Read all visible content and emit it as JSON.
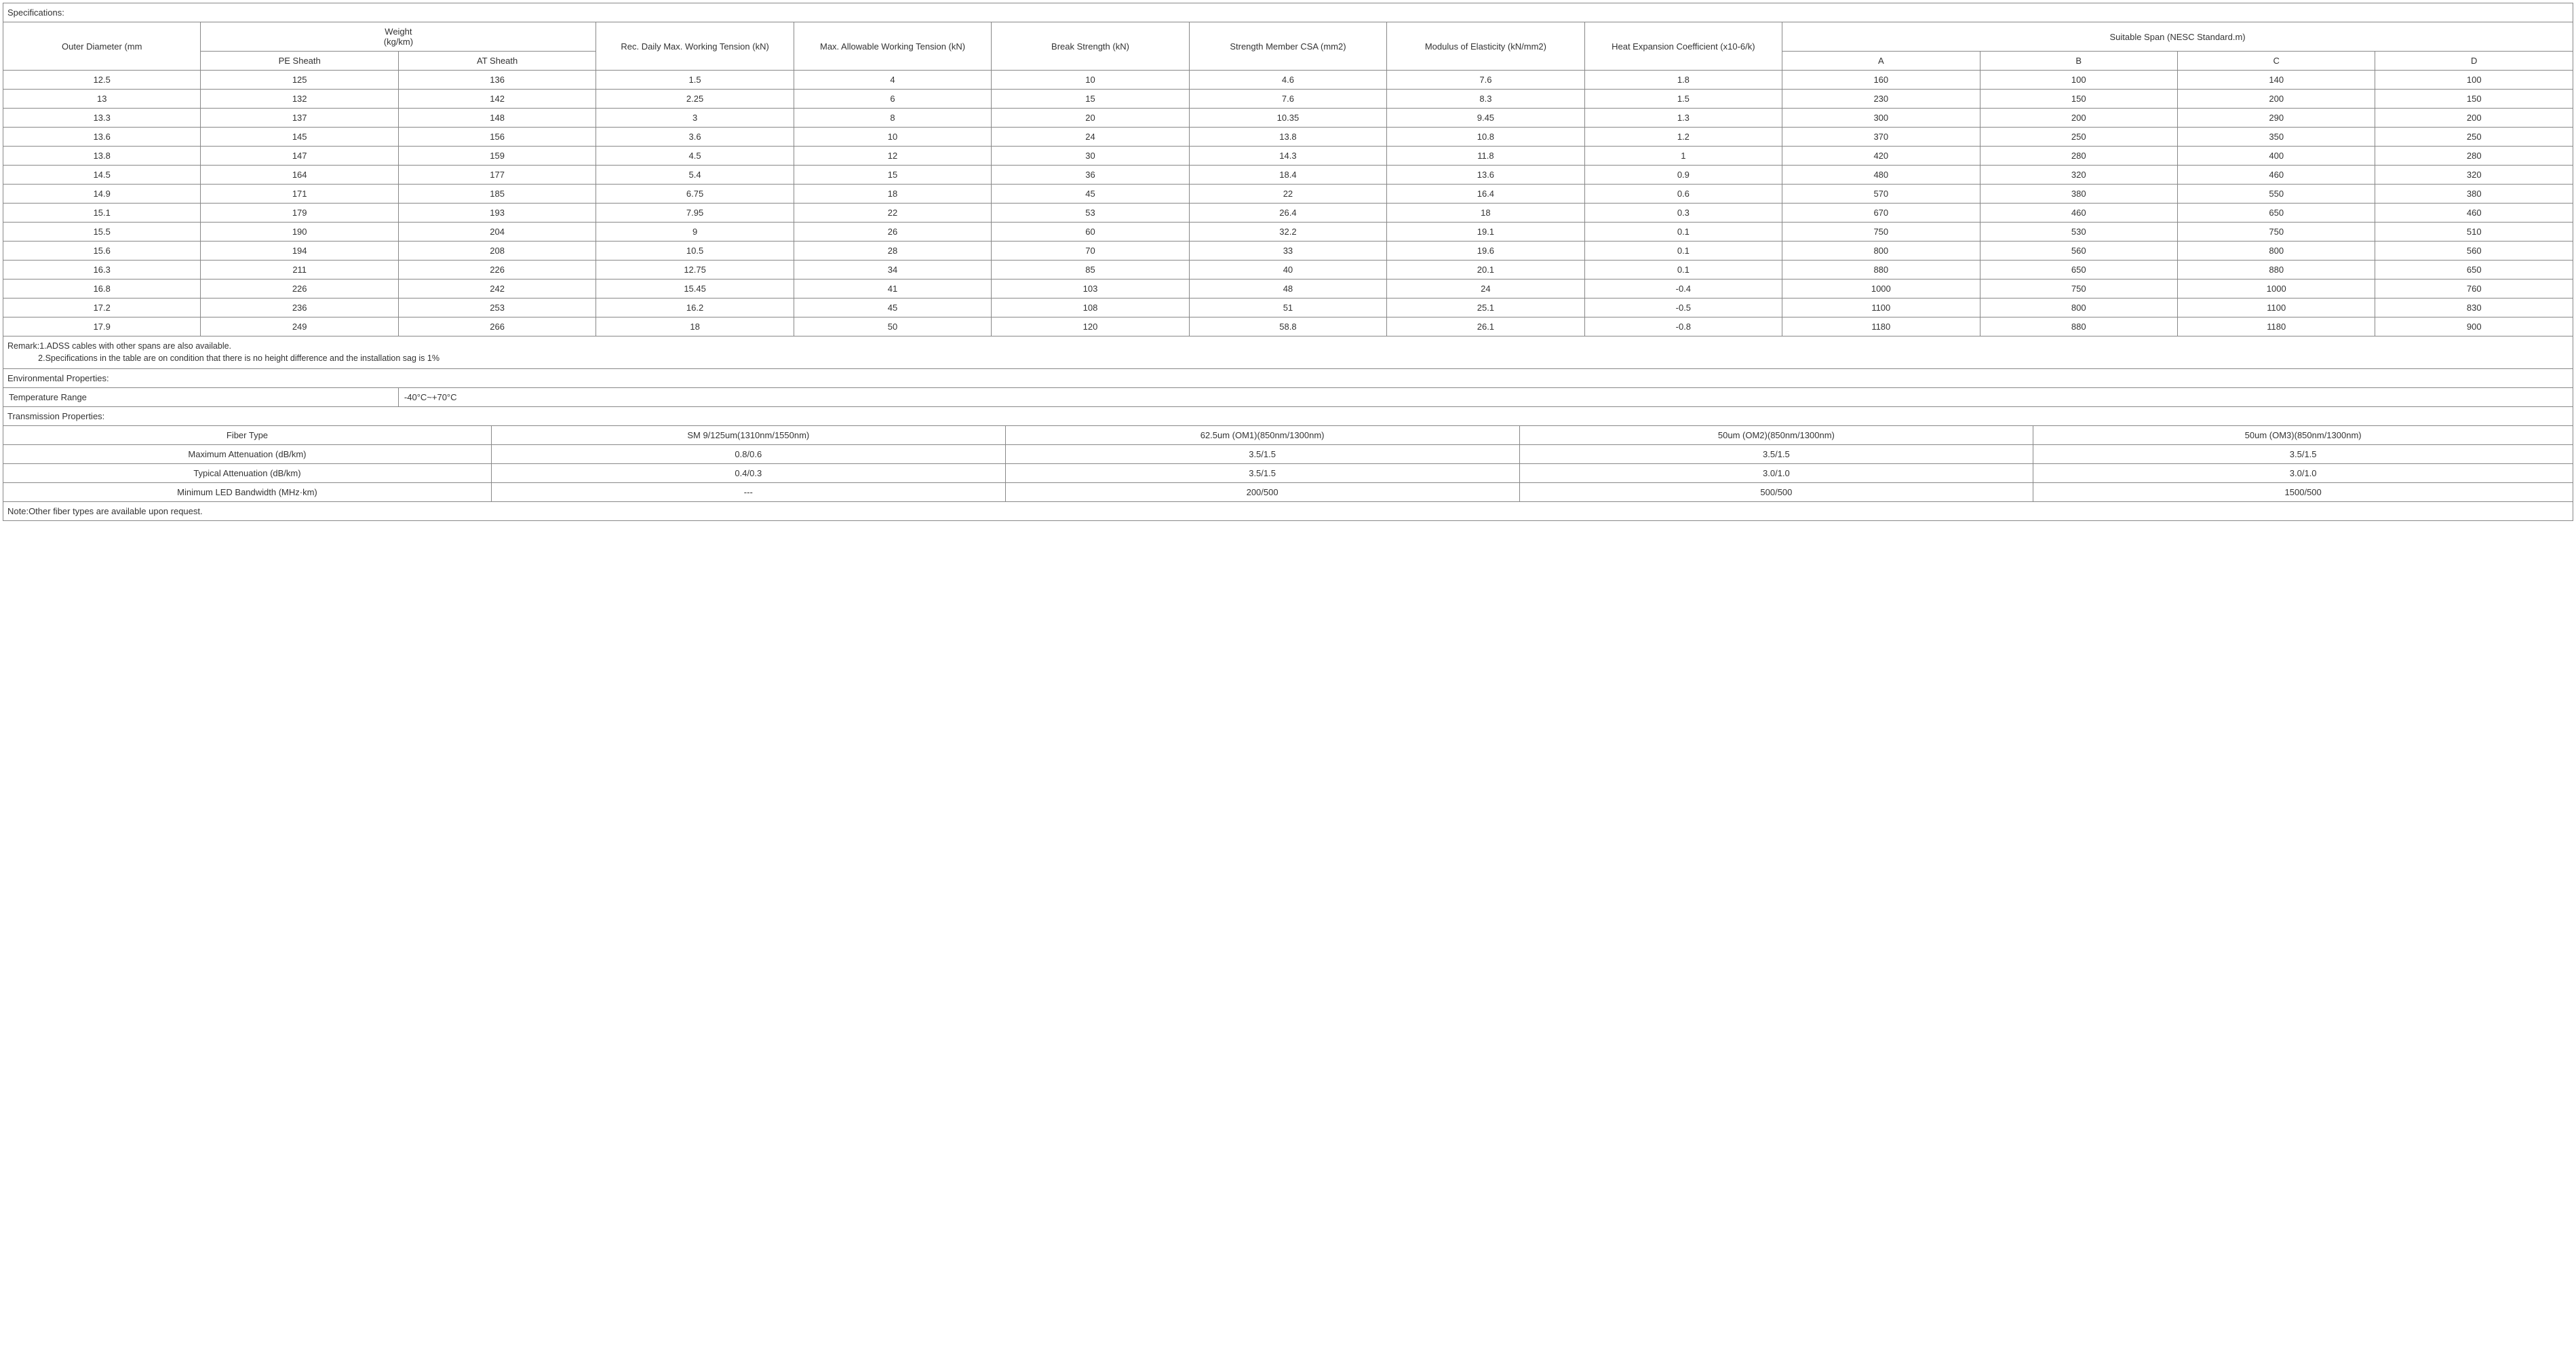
{
  "spec_title": "Specifications:",
  "headers": {
    "outer_diameter": "Outer Diameter (mm",
    "weight": "Weight\n(kg/km)",
    "pe_sheath": "PE Sheath",
    "at_sheath": "AT Sheath",
    "rec_daily": "Rec. Daily Max. Working Tension (kN)",
    "max_allow": "Max. Allowable Working Tension (kN)",
    "break_strength": "Break Strength (kN)",
    "strength_csa": "Strength Member CSA (mm2)",
    "modulus": "Modulus of Elasticity (kN/mm2)",
    "heat_exp": "Heat Expansion Coefficient (x10-6/k)",
    "span": "Suitable Span (NESC Standard.m)",
    "A": "A",
    "B": "B",
    "C": "C",
    "D": "D"
  },
  "rows": [
    [
      "12.5",
      "125",
      "136",
      "1.5",
      "4",
      "10",
      "4.6",
      "7.6",
      "1.8",
      "160",
      "100",
      "140",
      "100"
    ],
    [
      "13",
      "132",
      "142",
      "2.25",
      "6",
      "15",
      "7.6",
      "8.3",
      "1.5",
      "230",
      "150",
      "200",
      "150"
    ],
    [
      "13.3",
      "137",
      "148",
      "3",
      "8",
      "20",
      "10.35",
      "9.45",
      "1.3",
      "300",
      "200",
      "290",
      "200"
    ],
    [
      "13.6",
      "145",
      "156",
      "3.6",
      "10",
      "24",
      "13.8",
      "10.8",
      "1.2",
      "370",
      "250",
      "350",
      "250"
    ],
    [
      "13.8",
      "147",
      "159",
      "4.5",
      "12",
      "30",
      "14.3",
      "11.8",
      "1",
      "420",
      "280",
      "400",
      "280"
    ],
    [
      "14.5",
      "164",
      "177",
      "5.4",
      "15",
      "36",
      "18.4",
      "13.6",
      "0.9",
      "480",
      "320",
      "460",
      "320"
    ],
    [
      "14.9",
      "171",
      "185",
      "6.75",
      "18",
      "45",
      "22",
      "16.4",
      "0.6",
      "570",
      "380",
      "550",
      "380"
    ],
    [
      "15.1",
      "179",
      "193",
      "7.95",
      "22",
      "53",
      "26.4",
      "18",
      "0.3",
      "670",
      "460",
      "650",
      "460"
    ],
    [
      "15.5",
      "190",
      "204",
      "9",
      "26",
      "60",
      "32.2",
      "19.1",
      "0.1",
      "750",
      "530",
      "750",
      "510"
    ],
    [
      "15.6",
      "194",
      "208",
      "10.5",
      "28",
      "70",
      "33",
      "19.6",
      "0.1",
      "800",
      "560",
      "800",
      "560"
    ],
    [
      "16.3",
      "211",
      "226",
      "12.75",
      "34",
      "85",
      "40",
      "20.1",
      "0.1",
      "880",
      "650",
      "880",
      "650"
    ],
    [
      "16.8",
      "226",
      "242",
      "15.45",
      "41",
      "103",
      "48",
      "24",
      "-0.4",
      "1000",
      "750",
      "1000",
      "760"
    ],
    [
      "17.2",
      "236",
      "253",
      "16.2",
      "45",
      "108",
      "51",
      "25.1",
      "-0.5",
      "1100",
      "800",
      "1100",
      "830"
    ],
    [
      "17.9",
      "249",
      "266",
      "18",
      "50",
      "120",
      "58.8",
      "26.1",
      "-0.8",
      "1180",
      "880",
      "1180",
      "900"
    ]
  ],
  "remark_line1": "Remark:1.ADSS cables with other spans are also available.",
  "remark_line2": "             2.Specifications in the table are on condition that there is no height difference and the installation sag is 1%",
  "env_title": "Environmental Properties:",
  "temp_range_label": "Temperature Range",
  "temp_range_value": "-40°C~+70°C",
  "trans_title": "Transmission Properties:",
  "trans_headers": [
    "Fiber Type",
    "SM 9/125um(1310nm/1550nm)",
    "62.5um (OM1)(850nm/1300nm)",
    "50um (OM2)(850nm/1300nm)",
    "50um (OM3)(850nm/1300nm)"
  ],
  "trans_rows": [
    [
      "Maximum Attenuation (dB/km)",
      "0.8/0.6",
      "3.5/1.5",
      "3.5/1.5",
      "3.5/1.5"
    ],
    [
      "Typical Attenuation (dB/km)",
      "0.4/0.3",
      "3.5/1.5",
      "3.0/1.0",
      "3.0/1.0"
    ],
    [
      "Minimum LED Bandwidth (MHz·km)",
      "---",
      "200/500",
      "500/500",
      "1500/500"
    ]
  ],
  "note": "Note:Other fiber types are available upon request.",
  "colors": {
    "border": "#888888",
    "text": "#333333",
    "background": "#ffffff"
  }
}
